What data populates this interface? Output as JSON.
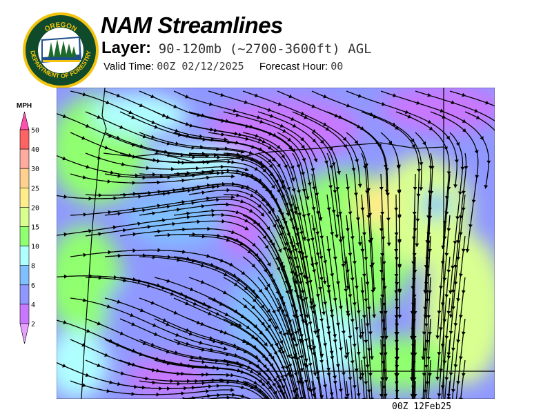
{
  "header": {
    "title": "NAM Streamlines",
    "layer_label": "Layer:",
    "layer_value": "90-120mb (~2700-3600ft) AGL",
    "valid_time_label": "Valid Time:",
    "valid_time_value": "00Z 02/12/2025",
    "forecast_hour_label": "Forecast Hour:",
    "forecast_hour_value": "00"
  },
  "logo": {
    "top_text": "OREGON",
    "bottom_text": "DEPARTMENT OF FORESTRY"
  },
  "legend": {
    "unit": "MPH",
    "labels": [
      "50",
      "40",
      "30",
      "25",
      "20",
      "15",
      "10",
      "8",
      "6",
      "4",
      "2"
    ],
    "bins": [
      {
        "range": "40-50",
        "color": "#ff6464"
      },
      {
        "range": "30-40",
        "color": "#ffaca0"
      },
      {
        "range": "25-30",
        "color": "#ffd090"
      },
      {
        "range": "20-25",
        "color": "#ffec8a"
      },
      {
        "range": "15-20",
        "color": "#d8ff90"
      },
      {
        "range": "10-15",
        "color": "#90ff70"
      },
      {
        "range": "8-10",
        "color": "#b0ffff"
      },
      {
        "range": "6-8",
        "color": "#80c0ff"
      },
      {
        "range": "4-6",
        "color": "#9098ff"
      },
      {
        "range": "2-4",
        "color": "#c878ff"
      }
    ],
    "over_color": "#ff50b0",
    "under_color": "#e8a0ff"
  },
  "map": {
    "product": "wind speed shading with streamlines",
    "streamline_color": "#000000"
  },
  "footer": {
    "stamp": "00Z 12Feb25"
  }
}
